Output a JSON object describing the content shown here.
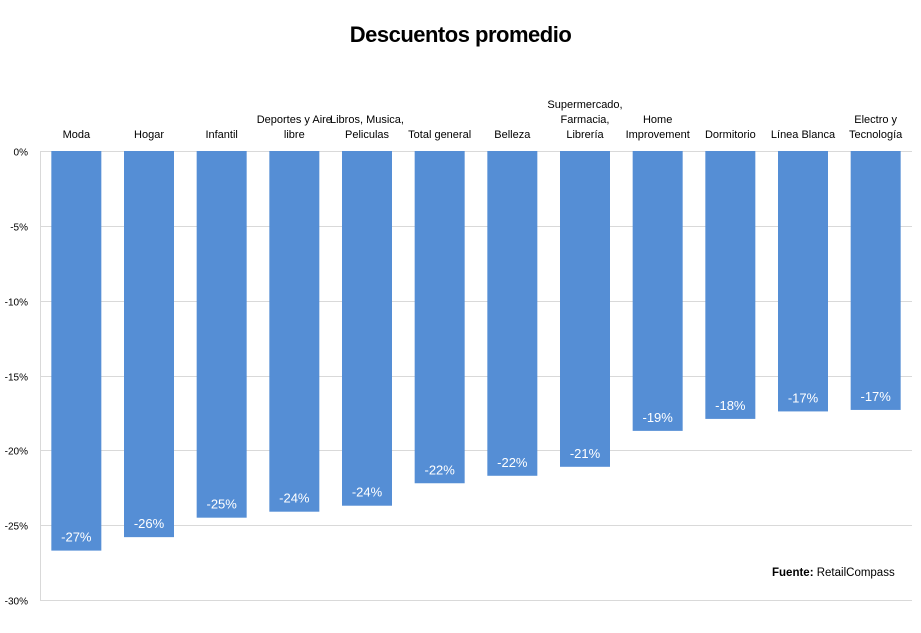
{
  "chart_data": {
    "type": "bar",
    "title": "Descuentos promedio",
    "categories": [
      [
        "Moda"
      ],
      [
        "Hogar"
      ],
      [
        "Infantil"
      ],
      [
        "Deportes y Aire",
        "libre"
      ],
      [
        "Libros, Musica,",
        "Peliculas"
      ],
      [
        "Total general"
      ],
      [
        "Belleza"
      ],
      [
        "Supermercado,",
        "Farmacia,",
        "Librería"
      ],
      [
        "Home",
        "Improvement"
      ],
      [
        "Dormitorio"
      ],
      [
        "Línea Blanca"
      ],
      [
        "Electro y",
        "Tecnología"
      ]
    ],
    "values": [
      -26.7,
      -25.8,
      -24.5,
      -24.1,
      -23.7,
      -22.2,
      -21.7,
      -21.1,
      -18.7,
      -17.9,
      -17.4,
      -17.3
    ],
    "data_labels": [
      "-27%",
      "-26%",
      "-25%",
      "-24%",
      "-24%",
      "-22%",
      "-22%",
      "-21%",
      "-19%",
      "-18%",
      "-17%",
      "-17%"
    ],
    "ylim": [
      -30,
      0
    ],
    "yticks": [
      0,
      -5,
      -10,
      -15,
      -20,
      -25,
      -30
    ],
    "ytick_labels": [
      "0%",
      "-5%",
      "-10%",
      "-15%",
      "-20%",
      "-25%",
      "-30%"
    ],
    "xlabel": "",
    "ylabel": "",
    "grid": true,
    "bar_color": "#558ed5"
  },
  "source": {
    "label": "Fuente:",
    "value": "RetailCompass"
  }
}
